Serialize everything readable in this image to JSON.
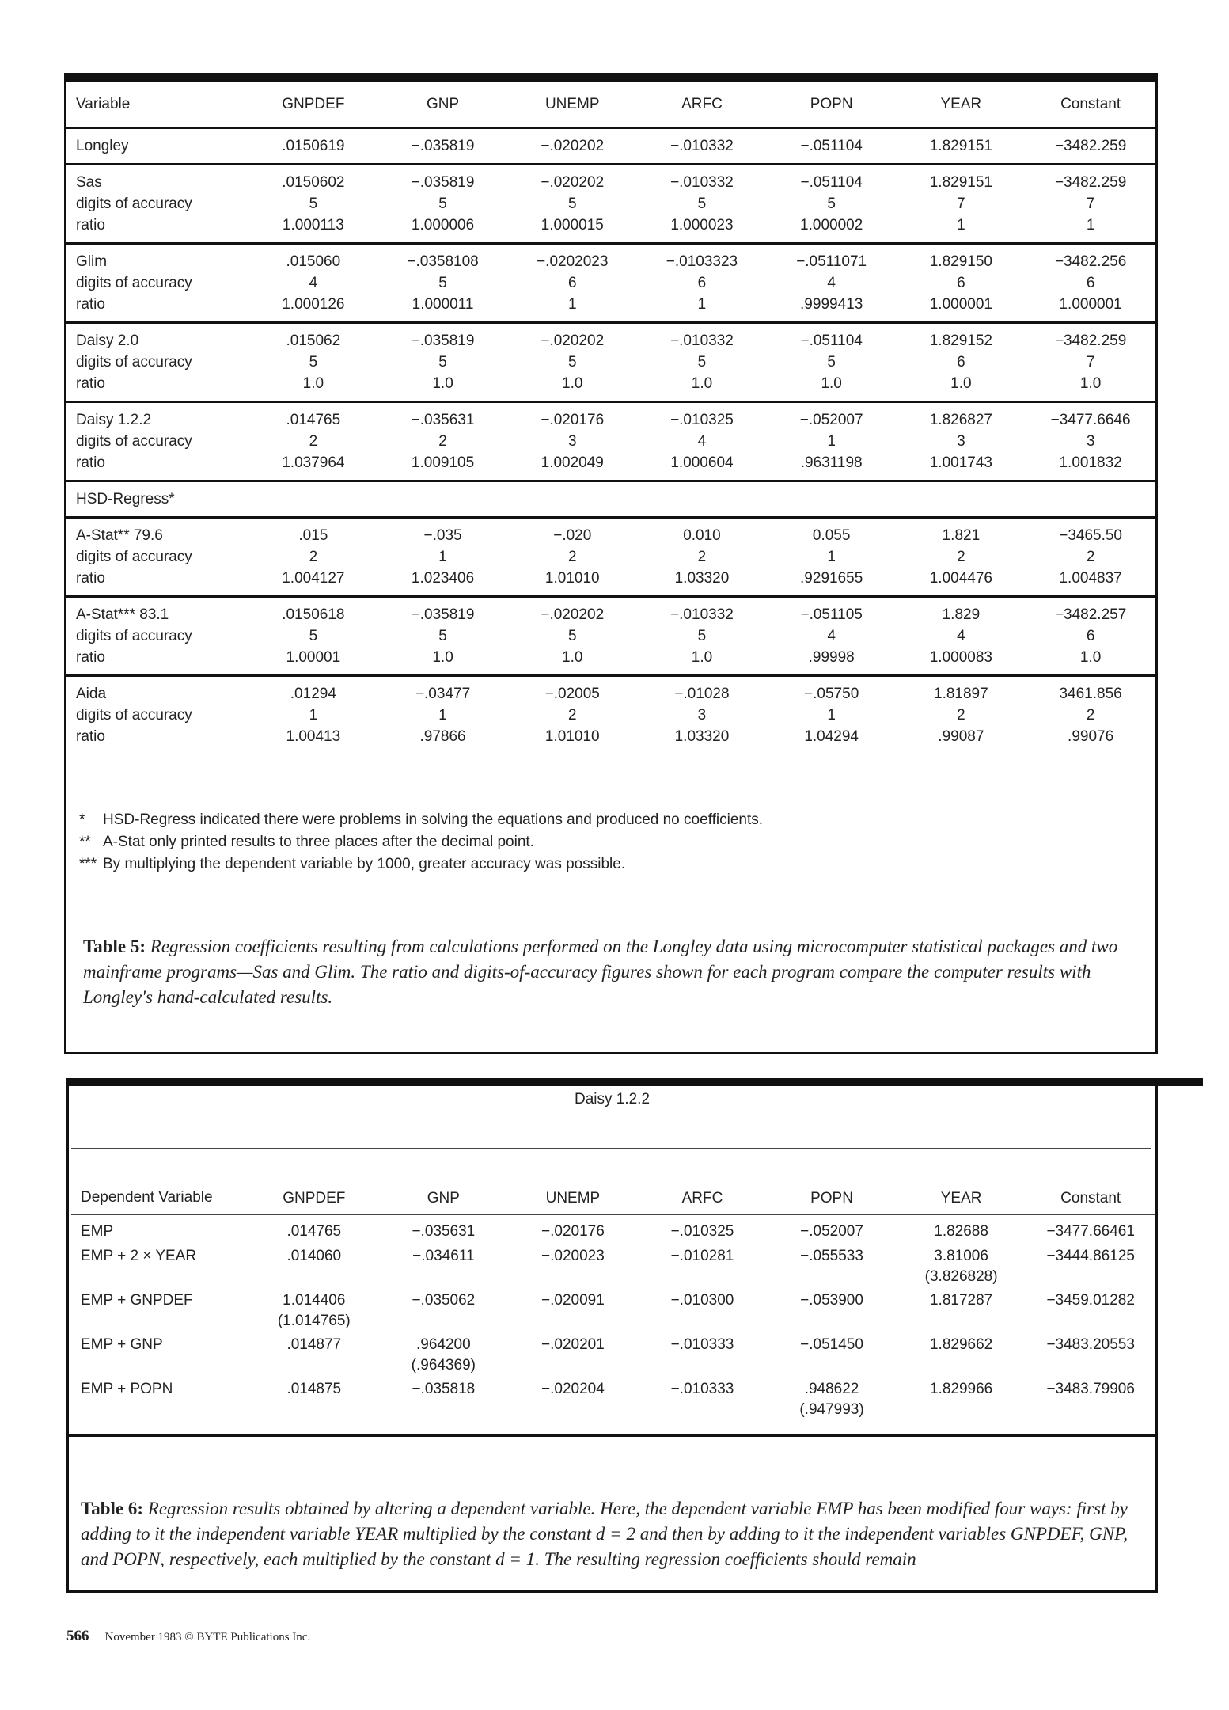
{
  "table5": {
    "columns": [
      "Variable",
      "GNPDEF",
      "GNP",
      "UNEMP",
      "ARFC",
      "POPN",
      "YEAR",
      "Constant"
    ],
    "row_labels": {
      "digits": "digits of accuracy",
      "ratio": "ratio"
    },
    "groups": [
      {
        "name": "Longley",
        "values": [
          ".0150619",
          "−.035819",
          "−.020202",
          "−.010332",
          "−.051104",
          "1.829151",
          "−3482.259"
        ]
      },
      {
        "name": "Sas",
        "values": [
          ".0150602",
          "−.035819",
          "−.020202",
          "−.010332",
          "−.051104",
          "1.829151",
          "−3482.259"
        ],
        "digits": [
          "5",
          "5",
          "5",
          "5",
          "5",
          "7",
          "7"
        ],
        "ratio": [
          "1.000113",
          "1.000006",
          "1.000015",
          "1.000023",
          "1.000002",
          "1",
          "1"
        ]
      },
      {
        "name": "Glim",
        "values": [
          ".015060",
          "−.0358108",
          "−.0202023",
          "−.0103323",
          "−.0511071",
          "1.829150",
          "−3482.256"
        ],
        "digits": [
          "4",
          "5",
          "6",
          "6",
          "4",
          "6",
          "6"
        ],
        "ratio": [
          "1.000126",
          "1.000011",
          "1",
          "1",
          ".9999413",
          "1.000001",
          "1.000001"
        ]
      },
      {
        "name": "Daisy 2.0",
        "values": [
          ".015062",
          "−.035819",
          "−.020202",
          "−.010332",
          "−.051104",
          "1.829152",
          "−3482.259"
        ],
        "digits": [
          "5",
          "5",
          "5",
          "5",
          "5",
          "6",
          "7"
        ],
        "ratio": [
          "1.0",
          "1.0",
          "1.0",
          "1.0",
          "1.0",
          "1.0",
          "1.0"
        ]
      },
      {
        "name": "Daisy 1.2.2",
        "values": [
          ".014765",
          "−.035631",
          "−.020176",
          "−.010325",
          "−.052007",
          "1.826827",
          "−3477.6646"
        ],
        "digits": [
          "2",
          "2",
          "3",
          "4",
          "1",
          "3",
          "3"
        ],
        "ratio": [
          "1.037964",
          "1.009105",
          "1.002049",
          "1.000604",
          ".9631198",
          "1.001743",
          "1.001832"
        ]
      },
      {
        "name": "HSD-Regress*"
      },
      {
        "name": "A-Stat** 79.6",
        "values": [
          ".015",
          "−.035",
          "−.020",
          "0.010",
          "0.055",
          "1.821",
          "−3465.50"
        ],
        "digits": [
          "2",
          "1",
          "2",
          "2",
          "1",
          "2",
          "2"
        ],
        "ratio": [
          "1.004127",
          "1.023406",
          "1.01010",
          "1.03320",
          ".9291655",
          "1.004476",
          "1.004837"
        ]
      },
      {
        "name": "A-Stat*** 83.1",
        "values": [
          ".0150618",
          "−.035819",
          "−.020202",
          "−.010332",
          "−.051105",
          "1.829",
          "−3482.257"
        ],
        "digits": [
          "5",
          "5",
          "5",
          "5",
          "4",
          "4",
          "6"
        ],
        "ratio": [
          "1.00001",
          "1.0",
          "1.0",
          "1.0",
          ".99998",
          "1.000083",
          "1.0"
        ]
      },
      {
        "name": "Aida",
        "values": [
          ".01294",
          "−.03477",
          "−.02005",
          "−.01028",
          "−.05750",
          "1.81897",
          "3461.856"
        ],
        "digits": [
          "1",
          "1",
          "2",
          "3",
          "1",
          "2",
          "2"
        ],
        "ratio": [
          "1.00413",
          ".97866",
          "1.01010",
          "1.03320",
          "1.04294",
          ".99087",
          ".99076"
        ]
      }
    ],
    "footnotes": [
      {
        "mark": "*",
        "text": "HSD-Regress indicated there were problems in solving the equations and produced no coefficients."
      },
      {
        "mark": "**",
        "text": "A-Stat only printed results to three places after the decimal point."
      },
      {
        "mark": "***",
        "text": "By multiplying the dependent variable by 1000, greater accuracy was possible."
      }
    ],
    "caption_label": "Table 5:",
    "caption": "Regression coefficients resulting from calculations performed on the Longley data using microcomputer statistical packages and two mainframe programs—Sas and Glim. The ratio and digits-of-accuracy figures shown for each program compare the computer results with Longley's hand-calculated results."
  },
  "table6": {
    "title": "Daisy 1.2.2",
    "columns": [
      "Dependent Variable",
      "GNPDEF",
      "GNP",
      "UNEMP",
      "ARFC",
      "POPN",
      "YEAR",
      "Constant"
    ],
    "rows": [
      {
        "label": "EMP",
        "values": [
          ".014765",
          "−.035631",
          "−.020176",
          "−.010325",
          "−.052007",
          "1.82688",
          "−3477.66461"
        ]
      },
      {
        "label": "EMP + 2 × YEAR",
        "values": [
          ".014060",
          "−.034611",
          "−.020023",
          "−.010281",
          "−.055533",
          [
            "3.81006",
            "(3.826828)"
          ],
          "−3444.86125"
        ]
      },
      {
        "label": "EMP + GNPDEF",
        "values": [
          [
            "1.014406",
            "(1.014765)"
          ],
          "−.035062",
          "−.020091",
          "−.010300",
          "−.053900",
          "1.817287",
          "−3459.01282"
        ]
      },
      {
        "label": "EMP + GNP",
        "values": [
          ".014877",
          [
            ".964200",
            "(.964369)"
          ],
          "−.020201",
          "−.010333",
          "−.051450",
          "1.829662",
          "−3483.20553"
        ]
      },
      {
        "label": "EMP + POPN",
        "values": [
          ".014875",
          "−.035818",
          "−.020204",
          "−.010333",
          [
            ".948622",
            "(.947993)"
          ],
          "1.829966",
          "−3483.79906"
        ]
      }
    ],
    "caption_label": "Table 6:",
    "caption": "Regression results obtained by altering a dependent variable. Here, the dependent variable EMP has been modified four ways: first by adding to it the independent variable YEAR multiplied by the constant d = 2 and then by adding to it the independent variables GNPDEF, GNP, and POPN, respectively, each multiplied by the constant d = 1. The resulting regression coefficients should remain"
  },
  "footer": {
    "page": "566",
    "text": "November 1983 © BYTE Publications Inc."
  }
}
